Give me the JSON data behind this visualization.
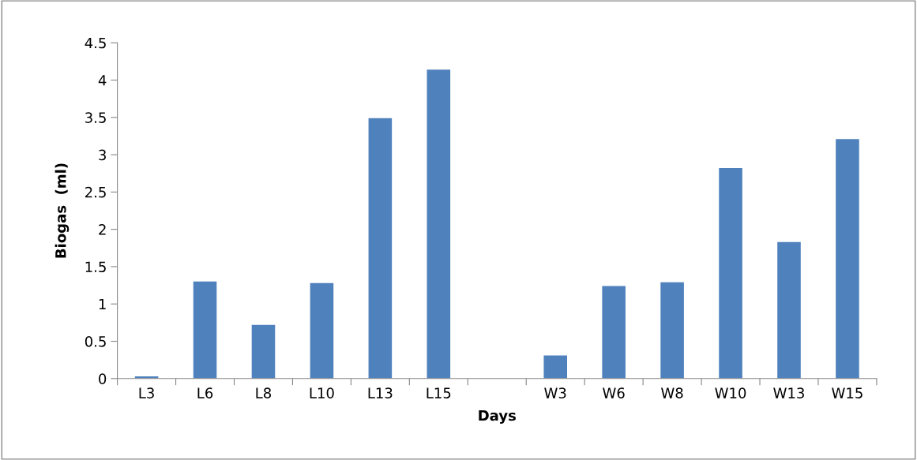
{
  "chart_data": {
    "type": "bar",
    "xlabel": "Days",
    "ylabel": "Biogas  (ml)",
    "categories": [
      "L3",
      "L6",
      "L8",
      "L10",
      "L13",
      "L15",
      null,
      "W3",
      "W6",
      "W8",
      "W10",
      "W13",
      "W15"
    ],
    "values": [
      0.03,
      1.3,
      0.72,
      1.28,
      3.49,
      4.14,
      null,
      0.31,
      1.24,
      1.29,
      2.82,
      1.83,
      3.21
    ],
    "color": "#4f81bd",
    "ylim": [
      0,
      4.5
    ],
    "yticks": [
      0,
      0.5,
      1,
      1.5,
      2,
      2.5,
      3,
      3.5,
      4,
      4.5
    ],
    "grid": false
  }
}
